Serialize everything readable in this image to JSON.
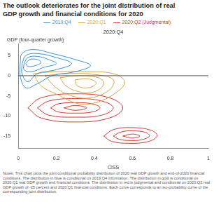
{
  "chart_data": {
    "type": "contour",
    "title": [
      "The outlook deteriorates for the joint distribution of real",
      "GDP growth and financial conditions for 2020"
    ],
    "panel_label": "2020:Q4",
    "y_label": "GDP (four-quarter growth)",
    "x_label": "CISS",
    "notes": "Notes: This chart plots the joint conditional probability distribution of 2020 real GDP growth and end-of-2020 financial conditions. The distribution in blue is conditional on 2019:Q4 information. The distribution in gold is conditional on 2020:Q1 real GDP growth and financial conditions. The distribution in red is judgmental and conditional on 2020:Q2 real GDP growth of -25 percent and 2020:Q1 financial conditions. Each curve corresponds to an iso-probability curve of the corresponding joint distribution.",
    "xlim": [
      0,
      1
    ],
    "xticks": [
      0,
      0.2,
      0.4,
      0.6,
      0.8,
      1
    ],
    "ylim": [
      -18,
      8
    ],
    "yticks": [
      -15,
      -10,
      -5,
      0,
      5
    ],
    "hlines": [
      0
    ],
    "grid": false,
    "legend": "top",
    "series": [
      {
        "name": "2019:Q4",
        "color": "#3a8fd0",
        "contours": [
          [
            [
              0.01,
              3
            ],
            [
              0.02,
              5.5
            ],
            [
              0.08,
              6.5
            ],
            [
              0.18,
              5.5
            ],
            [
              0.3,
              4
            ],
            [
              0.38,
              2.5
            ],
            [
              0.3,
              1
            ],
            [
              0.18,
              0
            ],
            [
              0.1,
              -2
            ],
            [
              0.04,
              -3
            ],
            [
              0.01,
              0
            ],
            [
              0.01,
              3
            ]
          ],
          [
            [
              0.02,
              3
            ],
            [
              0.04,
              5
            ],
            [
              0.1,
              5.5
            ],
            [
              0.2,
              4.5
            ],
            [
              0.28,
              3
            ],
            [
              0.2,
              1.5
            ],
            [
              0.1,
              0.5
            ],
            [
              0.05,
              -1.5
            ],
            [
              0.02,
              0.5
            ],
            [
              0.02,
              3
            ]
          ],
          [
            [
              0.03,
              3
            ],
            [
              0.05,
              4.5
            ],
            [
              0.1,
              4.8
            ],
            [
              0.16,
              4
            ],
            [
              0.2,
              3
            ],
            [
              0.13,
              2
            ],
            [
              0.07,
              1
            ],
            [
              0.03,
              1.5
            ],
            [
              0.03,
              3
            ]
          ],
          [
            [
              0.04,
              3
            ],
            [
              0.06,
              4
            ],
            [
              0.1,
              4
            ],
            [
              0.12,
              3.3
            ],
            [
              0.09,
              2.5
            ],
            [
              0.05,
              2.3
            ],
            [
              0.04,
              3
            ]
          ]
        ]
      },
      {
        "name": "2020:Q1",
        "color": "#d9a441",
        "contours": [
          [
            [
              0.08,
              0.5
            ],
            [
              0.2,
              1
            ],
            [
              0.35,
              1
            ],
            [
              0.5,
              0.5
            ],
            [
              0.56,
              -1.5
            ],
            [
              0.52,
              -4
            ],
            [
              0.42,
              -6.5
            ],
            [
              0.32,
              -7
            ],
            [
              0.22,
              -5
            ],
            [
              0.12,
              -2.5
            ],
            [
              0.08,
              0.5
            ]
          ],
          [
            [
              0.14,
              0
            ],
            [
              0.25,
              0.5
            ],
            [
              0.4,
              0.3
            ],
            [
              0.5,
              -1
            ],
            [
              0.48,
              -3.5
            ],
            [
              0.38,
              -5.5
            ],
            [
              0.28,
              -5
            ],
            [
              0.2,
              -3
            ],
            [
              0.14,
              0
            ]
          ],
          [
            [
              0.22,
              -0.5
            ],
            [
              0.32,
              0
            ],
            [
              0.42,
              -0.5
            ],
            [
              0.45,
              -2
            ],
            [
              0.4,
              -4
            ],
            [
              0.32,
              -4
            ],
            [
              0.25,
              -2.5
            ],
            [
              0.22,
              -0.5
            ]
          ],
          [
            [
              0.3,
              -1
            ],
            [
              0.37,
              -0.8
            ],
            [
              0.41,
              -1.8
            ],
            [
              0.37,
              -3
            ],
            [
              0.31,
              -2.5
            ],
            [
              0.3,
              -1
            ]
          ]
        ]
      },
      {
        "name": "2020:Q2 (Judgmental)",
        "color": "#d0362f",
        "contours": [
          [
            [
              0.05,
              -8
            ],
            [
              0.12,
              -5.5
            ],
            [
              0.3,
              -4.5
            ],
            [
              0.48,
              -5.5
            ],
            [
              0.55,
              -8
            ],
            [
              0.48,
              -10.5
            ],
            [
              0.3,
              -11.5
            ],
            [
              0.12,
              -10.5
            ],
            [
              0.05,
              -8
            ]
          ],
          [
            [
              0.1,
              -8
            ],
            [
              0.16,
              -6.3
            ],
            [
              0.3,
              -5.7
            ],
            [
              0.44,
              -6.3
            ],
            [
              0.5,
              -8
            ],
            [
              0.44,
              -9.8
            ],
            [
              0.3,
              -10.3
            ],
            [
              0.16,
              -9.8
            ],
            [
              0.1,
              -8
            ]
          ],
          [
            [
              0.17,
              -8
            ],
            [
              0.21,
              -7
            ],
            [
              0.3,
              -6.7
            ],
            [
              0.39,
              -7
            ],
            [
              0.43,
              -8
            ],
            [
              0.39,
              -9
            ],
            [
              0.3,
              -9.3
            ],
            [
              0.21,
              -9
            ],
            [
              0.17,
              -8
            ]
          ],
          [
            [
              0.24,
              -8
            ],
            [
              0.3,
              -7.4
            ],
            [
              0.36,
              -8
            ],
            [
              0.3,
              -8.6
            ],
            [
              0.24,
              -8
            ]
          ],
          [
            [
              0.45,
              -15
            ],
            [
              0.5,
              -13.4
            ],
            [
              0.6,
              -12.9
            ],
            [
              0.7,
              -13.6
            ],
            [
              0.73,
              -15
            ],
            [
              0.68,
              -16.4
            ],
            [
              0.58,
              -16.8
            ],
            [
              0.49,
              -16.3
            ],
            [
              0.45,
              -15
            ]
          ],
          [
            [
              0.5,
              -15
            ],
            [
              0.54,
              -14
            ],
            [
              0.6,
              -13.7
            ],
            [
              0.67,
              -14.1
            ],
            [
              0.69,
              -15
            ],
            [
              0.65,
              -15.9
            ],
            [
              0.59,
              -16.1
            ],
            [
              0.53,
              -15.8
            ],
            [
              0.5,
              -15
            ]
          ],
          [
            [
              0.55,
              -15
            ],
            [
              0.6,
              -14.5
            ],
            [
              0.64,
              -15
            ],
            [
              0.6,
              -15.5
            ],
            [
              0.55,
              -15
            ]
          ]
        ]
      }
    ]
  }
}
